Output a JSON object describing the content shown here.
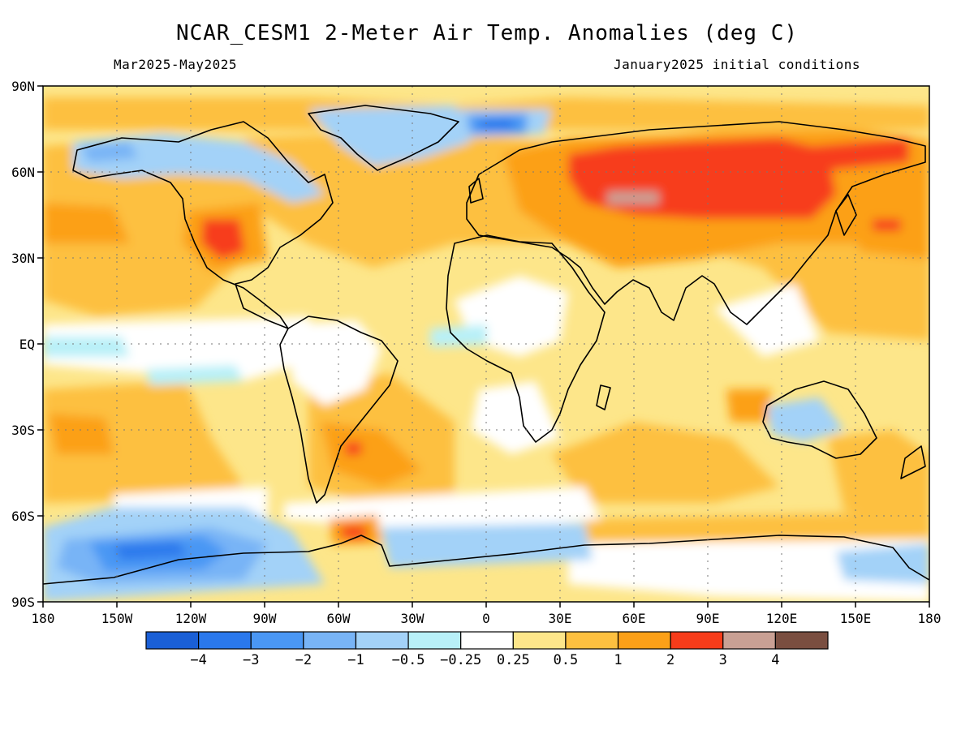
{
  "header": {
    "title": "NCAR_CESM1 2-Meter Air Temp. Anomalies (deg C)",
    "period": "Mar2025-May2025",
    "init": "January2025 initial conditions"
  },
  "map": {
    "lon_ticks": [
      "180",
      "150W",
      "120W",
      "90W",
      "60W",
      "30W",
      "0",
      "30E",
      "60E",
      "90E",
      "120E",
      "150E",
      "180"
    ],
    "lat_ticks": [
      "90N",
      "60N",
      "30N",
      "EQ",
      "30S",
      "60S",
      "90S"
    ],
    "lon_range": [
      -180,
      180
    ],
    "lat_range": [
      90,
      -90
    ],
    "grid": "dotted"
  },
  "colorbar": {
    "labels": [
      "-4",
      "-3",
      "-2",
      "-1",
      "-0.5",
      "-0.25",
      "0.25",
      "0.5",
      "1",
      "2",
      "3",
      "4"
    ],
    "colors": [
      "#1a5fd6",
      "#2a78ec",
      "#4a97f4",
      "#78b4f6",
      "#a3d2f8",
      "#b8f0f8",
      "#ffffff",
      "#fde68a",
      "#fdc040",
      "#fca018",
      "#f73c1a",
      "#c9a094",
      "#7a4e40"
    ]
  },
  "colors": {
    "ocean_warm": "#fde68a",
    "warm": "#fdc040",
    "hot": "#fca018",
    "very_hot": "#f73c1a",
    "extreme": "#c9a094",
    "cool": "#a3d2f8",
    "cold": "#78b4f6",
    "very_cold": "#4a97f4",
    "coldest": "#2a78ec",
    "coast": "#000000"
  }
}
